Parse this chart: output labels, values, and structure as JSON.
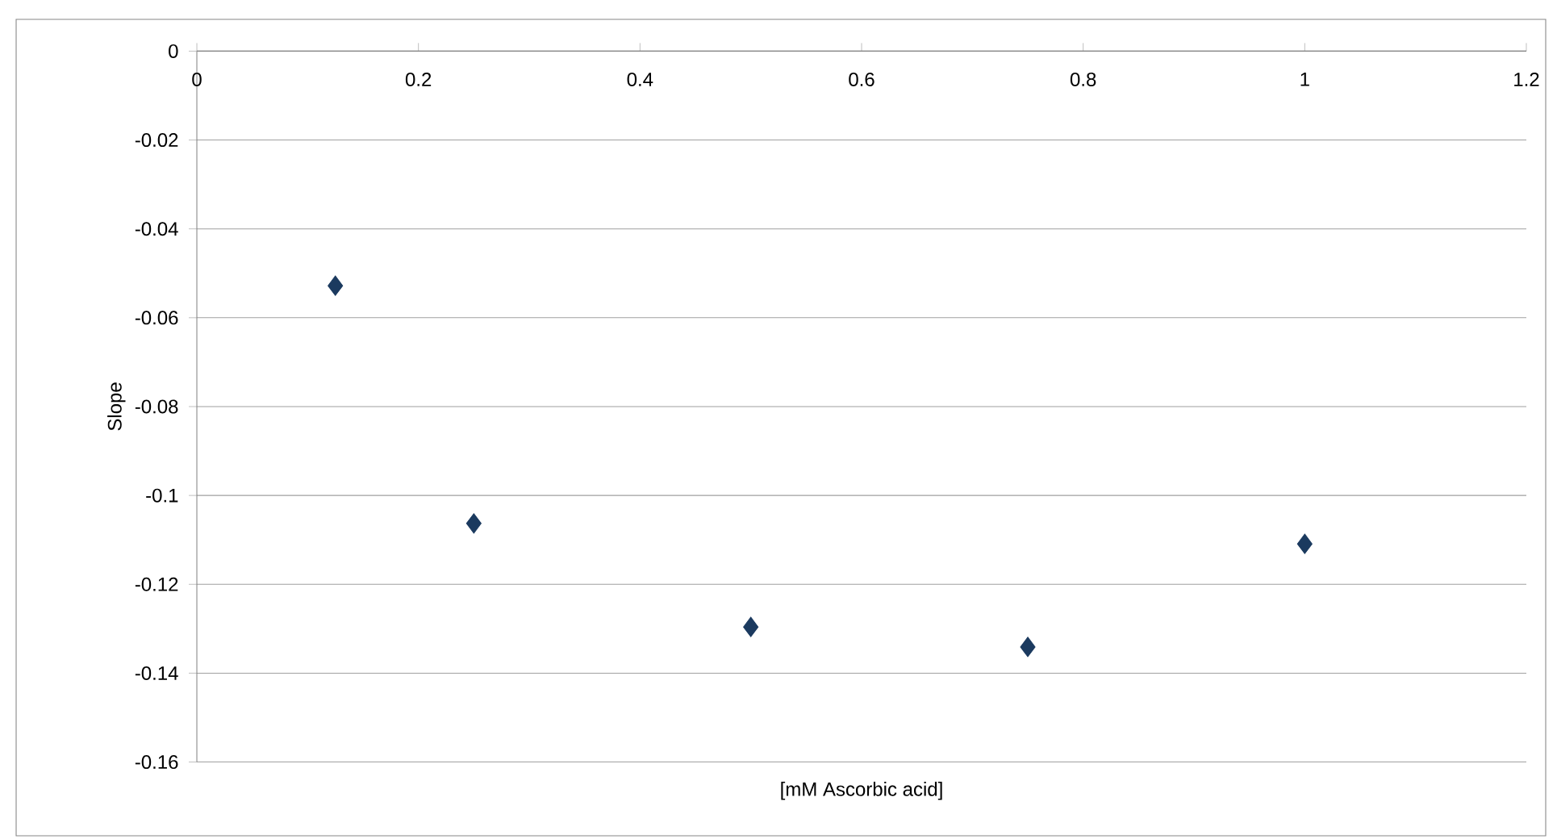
{
  "chart_data": {
    "type": "scatter",
    "xlabel": "[mM Ascorbic acid]",
    "ylabel": "Slope",
    "x": [
      0.125,
      0.25,
      0.5,
      0.75,
      1
    ],
    "values": [
      -0.0528,
      -0.1063,
      -0.1296,
      -0.1341,
      -0.1109
    ],
    "color": "#1b3a5f",
    "marker": "diamond",
    "xlim": [
      0,
      1.2
    ],
    "ylim": [
      -0.16,
      0
    ],
    "xticks": [
      0,
      0.2,
      0.4,
      0.6,
      0.8,
      1,
      1.2
    ],
    "yticks": [
      -0.16,
      -0.14,
      -0.12,
      -0.1,
      -0.08,
      -0.06,
      -0.04,
      -0.02,
      0
    ],
    "grid": "y"
  }
}
